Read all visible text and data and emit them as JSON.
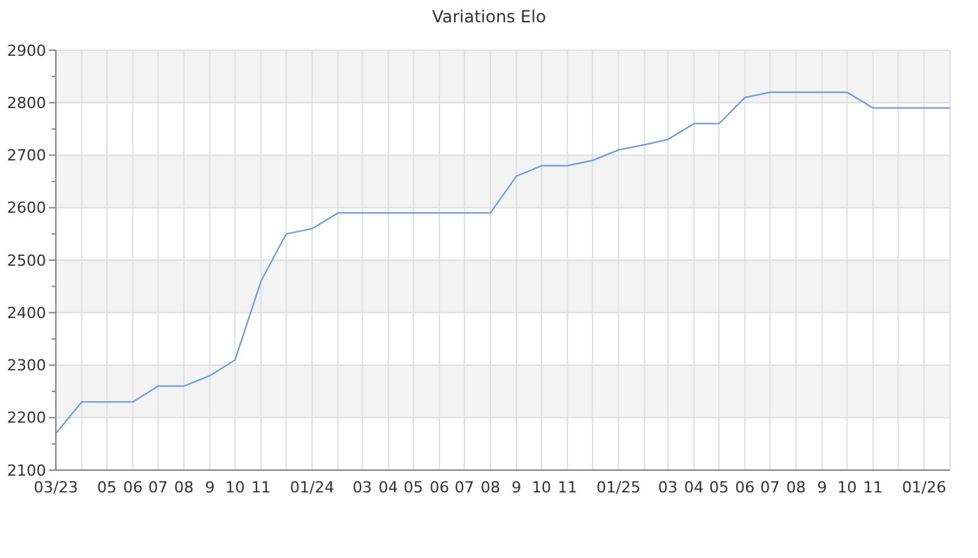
{
  "chart_data": {
    "type": "line",
    "title": "Variations Elo",
    "x": [
      "2023-03",
      "2023-04",
      "2023-05",
      "2023-06",
      "2023-07",
      "2023-08",
      "2023-09",
      "2023-10",
      "2023-11",
      "2023-12",
      "2024-01",
      "2024-02",
      "2024-03",
      "2024-04",
      "2024-05",
      "2024-06",
      "2024-07",
      "2024-08",
      "2024-09",
      "2024-10",
      "2024-11",
      "2024-12",
      "2025-01",
      "2025-02",
      "2025-03",
      "2025-04",
      "2025-05",
      "2025-06",
      "2025-07",
      "2025-08",
      "2025-09",
      "2025-10",
      "2025-11",
      "2025-12",
      "2026-01",
      "2026-02"
    ],
    "series": [
      {
        "color": "#6495ed",
        "values": [
          2170,
          2230,
          2230,
          2230,
          2260,
          2260,
          2280,
          2310,
          2460,
          2550,
          2560,
          2590,
          2590,
          2590,
          2590,
          2590,
          2590,
          2590,
          2660,
          2680,
          2680,
          2690,
          2710,
          2720,
          2730,
          2760,
          2760,
          2810,
          2820,
          2820,
          2820,
          2820,
          2790,
          2790,
          2790,
          2790
        ]
      }
    ],
    "xlim": [
      "2023-03",
      "2026-02"
    ],
    "xticks": [
      {
        "value": "2023-03",
        "label": "03/23"
      },
      {
        "value": "2023-04",
        "label": null
      },
      {
        "value": "2023-05",
        "label": "05"
      },
      {
        "value": "2023-06",
        "label": "06"
      },
      {
        "value": "2023-07",
        "label": "07"
      },
      {
        "value": "2023-08",
        "label": "08"
      },
      {
        "value": "2023-09",
        "label": "9"
      },
      {
        "value": "2023-10",
        "label": "10"
      },
      {
        "value": "2023-11",
        "label": "11"
      },
      {
        "value": "2023-12",
        "label": null
      },
      {
        "value": "2024-01",
        "label": "01/24"
      },
      {
        "value": "2024-02",
        "label": null
      },
      {
        "value": "2024-03",
        "label": "03"
      },
      {
        "value": "2024-04",
        "label": "04"
      },
      {
        "value": "2024-05",
        "label": "05"
      },
      {
        "value": "2024-06",
        "label": "06"
      },
      {
        "value": "2024-07",
        "label": "07"
      },
      {
        "value": "2024-08",
        "label": "08"
      },
      {
        "value": "2024-09",
        "label": "9"
      },
      {
        "value": "2024-10",
        "label": "10"
      },
      {
        "value": "2024-11",
        "label": "11"
      },
      {
        "value": "2024-12",
        "label": null
      },
      {
        "value": "2025-01",
        "label": "01/25"
      },
      {
        "value": "2025-02",
        "label": null
      },
      {
        "value": "2025-03",
        "label": "03"
      },
      {
        "value": "2025-04",
        "label": "04"
      },
      {
        "value": "2025-05",
        "label": "05"
      },
      {
        "value": "2025-06",
        "label": "06"
      },
      {
        "value": "2025-07",
        "label": "07"
      },
      {
        "value": "2025-08",
        "label": "08"
      },
      {
        "value": "2025-09",
        "label": "9"
      },
      {
        "value": "2025-10",
        "label": "10"
      },
      {
        "value": "2025-11",
        "label": "11"
      },
      {
        "value": "2025-12",
        "label": null
      },
      {
        "value": "2026-01",
        "label": "01/26"
      },
      {
        "value": "2026-02",
        "label": null
      }
    ],
    "ylim": [
      2100,
      2900
    ],
    "yticks": [
      2100,
      {
        "value": 2150,
        "label": null
      },
      2200,
      {
        "value": 2250,
        "label": null
      },
      2300,
      {
        "value": 2350,
        "label": null
      },
      2400,
      {
        "value": 2450,
        "label": null
      },
      2500,
      {
        "value": 2550,
        "label": null
      },
      2600,
      {
        "value": 2650,
        "label": null
      },
      2700,
      {
        "value": 2750,
        "label": null
      },
      2800,
      {
        "value": 2850,
        "label": null
      },
      2900
    ],
    "grid": true,
    "marker": "none",
    "line_style": "solid"
  }
}
